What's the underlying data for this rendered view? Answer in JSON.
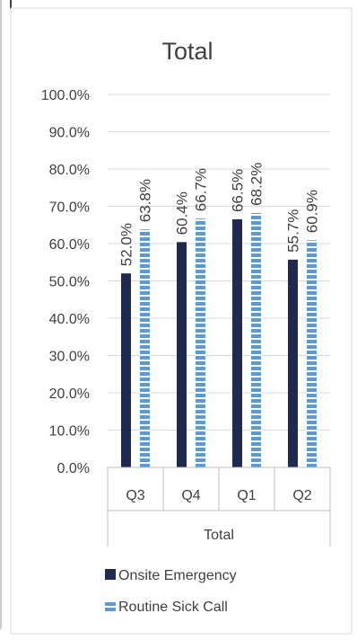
{
  "chart_data": {
    "type": "bar",
    "title": "Total",
    "group_label": "Total",
    "categories": [
      "Q3",
      "Q4",
      "Q1",
      "Q2"
    ],
    "series": [
      {
        "name": "Onsite Emergency",
        "values": [
          52.0,
          60.4,
          66.5,
          55.7
        ],
        "labels": [
          "52.0%",
          "60.4%",
          "66.5%",
          "55.7%"
        ],
        "color": "#1f2a52"
      },
      {
        "name": "Routine Sick Call",
        "values": [
          63.8,
          66.7,
          68.2,
          60.9
        ],
        "labels": [
          "63.8%",
          "66.7%",
          "68.2%",
          "60.9%"
        ],
        "color": "#5b9bd5"
      }
    ],
    "ylim": [
      0,
      100
    ],
    "yticks": [
      "0.0%",
      "10.0%",
      "20.0%",
      "30.0%",
      "40.0%",
      "50.0%",
      "60.0%",
      "70.0%",
      "80.0%",
      "90.0%",
      "100.0%"
    ],
    "grid": true,
    "legend_position": "bottom"
  }
}
